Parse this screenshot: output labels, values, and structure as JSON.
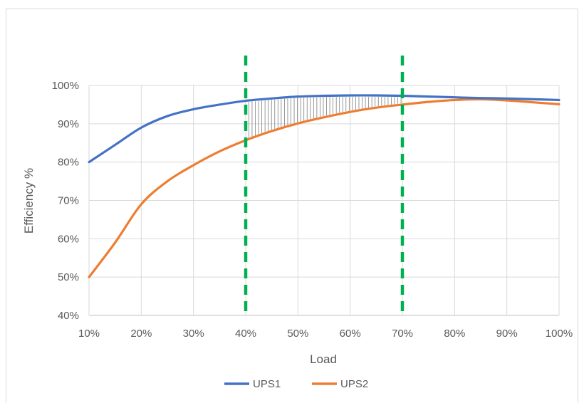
{
  "chart_data": {
    "type": "line",
    "title": "",
    "xlabel": "Load",
    "ylabel": "Efficiency %",
    "x": [
      10,
      15,
      20,
      25,
      30,
      35,
      40,
      45,
      50,
      55,
      60,
      65,
      70,
      75,
      80,
      85,
      90,
      95,
      100
    ],
    "x_tick_labels": [
      "10%",
      "20%",
      "30%",
      "40%",
      "50%",
      "60%",
      "70%",
      "80%",
      "90%",
      "100%"
    ],
    "y_tick_labels": [
      "40%",
      "50%",
      "60%",
      "70%",
      "80%",
      "90%",
      "100%"
    ],
    "xlim": [
      10,
      100
    ],
    "ylim": [
      40,
      100
    ],
    "grid": true,
    "legend": "bottom",
    "series": [
      {
        "name": "UPS1",
        "color": "#4472c4",
        "values": [
          80,
          84.5,
          89,
          92,
          93.8,
          95,
          96,
          96.6,
          97.1,
          97.3,
          97.4,
          97.4,
          97.3,
          97.1,
          96.9,
          96.7,
          96.6,
          96.4,
          96.2
        ]
      },
      {
        "name": "UPS2",
        "color": "#ed7d31",
        "values": [
          50,
          59,
          69,
          75,
          79.2,
          82.8,
          85.7,
          88.1,
          90.1,
          91.7,
          93.1,
          94.2,
          95,
          95.7,
          96.2,
          96.4,
          96.1,
          95.6,
          95.1
        ]
      }
    ],
    "vlines": [
      {
        "x": 40,
        "color": "#00b050",
        "style": "dashed"
      },
      {
        "x": 70,
        "color": "#00b050",
        "style": "dashed"
      }
    ],
    "shaded_region": {
      "x_from": 40,
      "x_to": 70,
      "between": [
        "UPS1",
        "UPS2"
      ],
      "pattern": "vertical-hatch"
    }
  }
}
